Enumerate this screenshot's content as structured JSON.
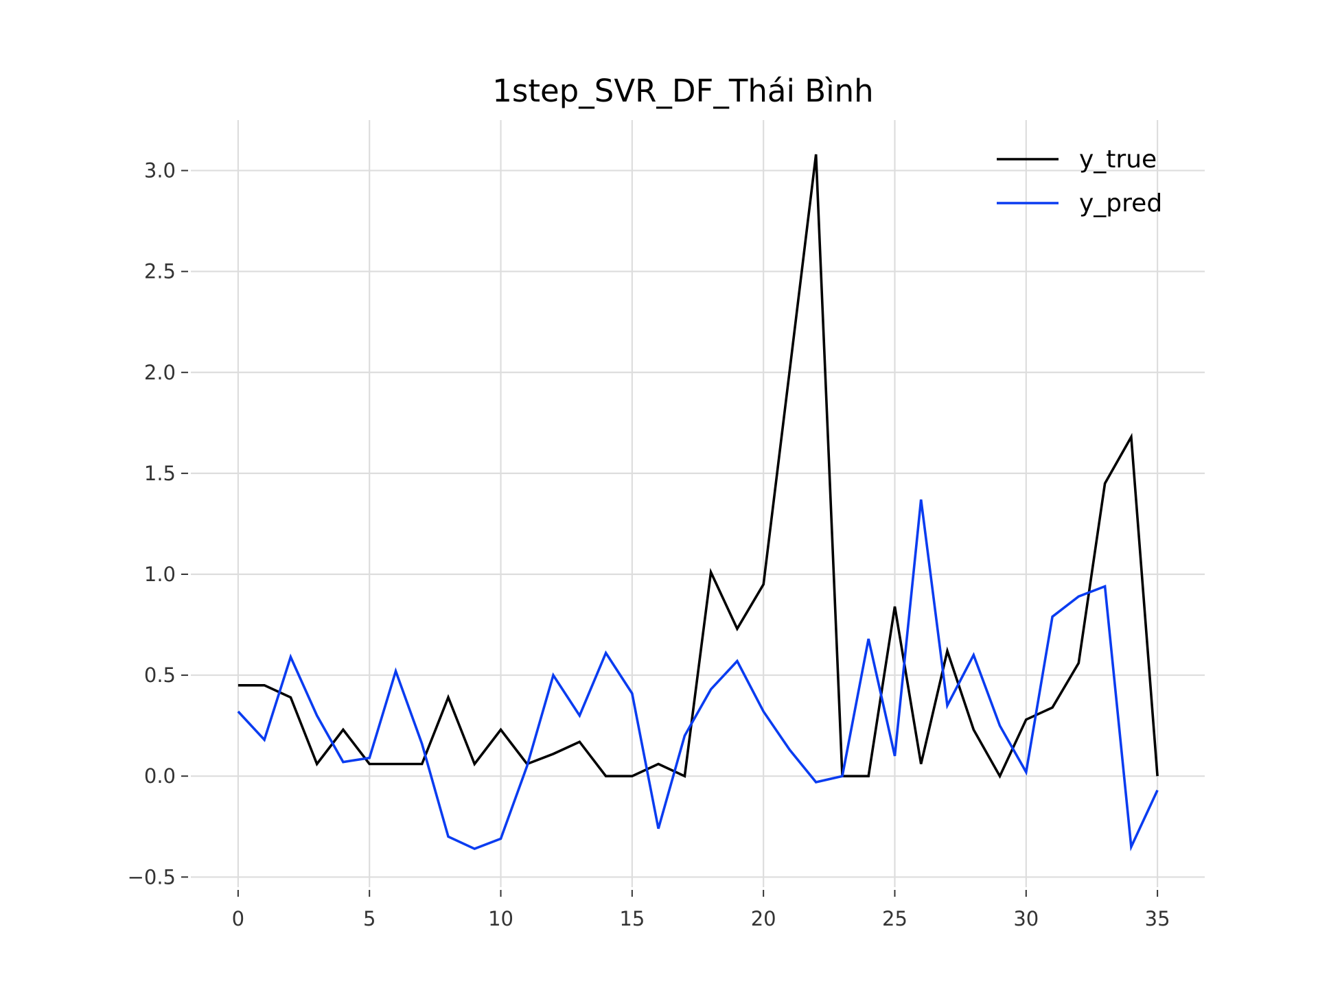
{
  "chart_data": {
    "type": "line",
    "title": "1step_SVR_DF_Thái Bình",
    "xlabel": "",
    "ylabel": "",
    "xlim": [
      -1.8,
      36.8
    ],
    "ylim": [
      -0.55,
      3.25
    ],
    "x_ticks": [
      0,
      5,
      10,
      15,
      20,
      25,
      30,
      35
    ],
    "y_ticks": [
      -0.5,
      0.0,
      0.5,
      1.0,
      1.5,
      2.0,
      2.5,
      3.0
    ],
    "x_tick_labels": [
      "0",
      "5",
      "10",
      "15",
      "20",
      "25",
      "30",
      "35"
    ],
    "y_tick_labels": [
      "−0.5",
      "0.0",
      "0.5",
      "1.0",
      "1.5",
      "2.0",
      "2.5",
      "3.0"
    ],
    "grid": true,
    "legend_position": "top-right",
    "x": [
      0,
      1,
      2,
      3,
      4,
      5,
      6,
      7,
      8,
      9,
      10,
      11,
      12,
      13,
      14,
      15,
      16,
      17,
      18,
      19,
      20,
      21,
      22,
      23,
      24,
      25,
      26,
      27,
      28,
      29,
      30,
      31,
      32,
      33,
      34,
      35
    ],
    "series": [
      {
        "name": "y_true",
        "color": "#000000",
        "values": [
          0.45,
          0.45,
          0.39,
          0.06,
          0.23,
          0.06,
          0.06,
          0.06,
          0.39,
          0.06,
          0.23,
          0.06,
          0.11,
          0.17,
          0.0,
          0.0,
          0.06,
          0.0,
          1.01,
          0.73,
          0.95,
          2.01,
          3.08,
          0.0,
          0.0,
          0.84,
          0.06,
          0.62,
          0.23,
          0.0,
          0.28,
          0.34,
          0.56,
          1.45,
          1.68,
          0.0
        ]
      },
      {
        "name": "y_pred",
        "color": "#0a3cf0",
        "values": [
          0.32,
          0.18,
          0.59,
          0.3,
          0.07,
          0.09,
          0.52,
          0.16,
          -0.3,
          -0.36,
          -0.31,
          0.05,
          0.5,
          0.3,
          0.61,
          0.41,
          -0.26,
          0.2,
          0.43,
          0.57,
          0.32,
          0.13,
          -0.03,
          0.0,
          0.68,
          0.1,
          1.37,
          0.35,
          0.6,
          0.25,
          0.02,
          0.79,
          0.89,
          0.94,
          -0.35,
          -0.07
        ]
      }
    ]
  }
}
